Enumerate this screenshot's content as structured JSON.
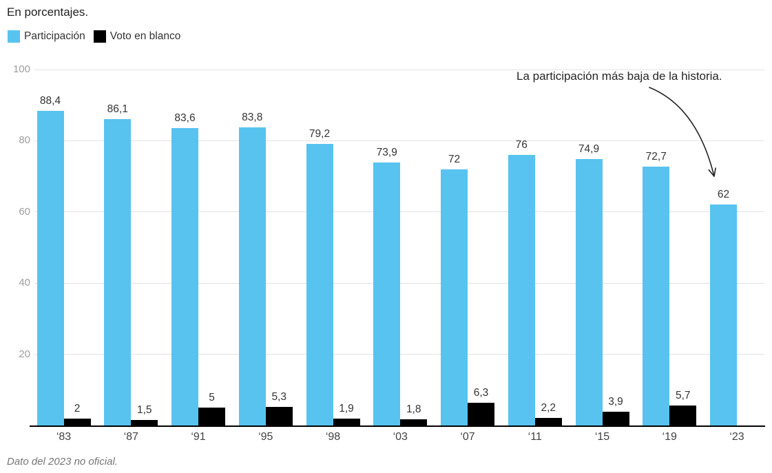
{
  "title": "En porcentajes.",
  "legend": [
    {
      "label": "Participación",
      "color": "#58c3ef"
    },
    {
      "label": "Voto en blanco",
      "color": "#000000"
    }
  ],
  "annotation": {
    "text": "La participación más baja de la historia."
  },
  "footnote": "Dato del 2023 no oficial.",
  "chart_data": {
    "type": "bar",
    "title": "En porcentajes.",
    "categories": [
      "‘83",
      "‘87",
      "‘91",
      "‘95",
      "‘98",
      "‘03",
      "‘07",
      "‘11",
      "‘15",
      "‘19",
      "‘23"
    ],
    "series": [
      {
        "name": "Participación",
        "color": "#58c3ef",
        "values": [
          88.4,
          86.1,
          83.6,
          83.8,
          79.2,
          73.9,
          72,
          76,
          74.9,
          72.7,
          62
        ],
        "labels": [
          "88,4",
          "86,1",
          "83,6",
          "83,8",
          "79,2",
          "73,9",
          "72",
          "76",
          "74,9",
          "72,7",
          "62"
        ]
      },
      {
        "name": "Voto en blanco",
        "color": "#000000",
        "values": [
          2,
          1.5,
          5,
          5.3,
          1.9,
          1.8,
          6.3,
          2.2,
          3.9,
          5.7,
          null
        ],
        "labels": [
          "2",
          "1,5",
          "5",
          "5,3",
          "1,9",
          "1,8",
          "6,3",
          "2,2",
          "3,9",
          "5,7",
          null
        ]
      }
    ],
    "xlabel": "",
    "ylabel": "",
    "ylim": [
      0,
      100
    ],
    "yticks": [
      20,
      40,
      60,
      80,
      100
    ],
    "grid": true,
    "legend_position": "top-left",
    "annotation": "La participación más baja de la historia.",
    "footnote": "Dato del 2023 no oficial."
  }
}
